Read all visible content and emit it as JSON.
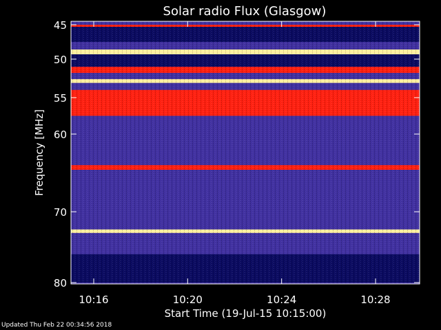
{
  "footer": {
    "updated": "Updated Thu Feb 22 00:34:56 2018"
  },
  "colors": {
    "background": "#000000",
    "axis": "#ffffff",
    "low": "#0a0a60",
    "mid": "#4030a0",
    "high": "#ff2010",
    "peak": "#fff0a0"
  },
  "chart_data": {
    "type": "heatmap",
    "title": "Solar radio Flux (Glasgow)",
    "xlabel": "Start Time (19-Jul-15 10:15:00)",
    "ylabel": "Frequency [MHz]",
    "x_range_minutes": [
      10.25,
      10.5
    ],
    "xlim": [
      "10:15:00",
      "10:30:00"
    ],
    "ylim": [
      80,
      45
    ],
    "x_ticks": [
      {
        "label": "10:16",
        "minute": 16
      },
      {
        "label": "10:20",
        "minute": 20
      },
      {
        "label": "10:24",
        "minute": 24
      },
      {
        "label": "10:28",
        "minute": 28
      }
    ],
    "y_ticks": [
      {
        "label": "45",
        "value": 45
      },
      {
        "label": "50",
        "value": 50
      },
      {
        "label": "55",
        "value": 55
      },
      {
        "label": "60",
        "value": 60
      },
      {
        "label": "70",
        "value": 70
      },
      {
        "label": "80",
        "value": 80
      }
    ],
    "bands": [
      {
        "freq_from": 45.0,
        "freq_to": 45.3,
        "level": "high"
      },
      {
        "freq_from": 45.3,
        "freq_to": 47.5,
        "level": "low"
      },
      {
        "freq_from": 47.5,
        "freq_to": 48.6,
        "level": "mid"
      },
      {
        "freq_from": 48.6,
        "freq_to": 49.3,
        "level": "peak"
      },
      {
        "freq_from": 49.3,
        "freq_to": 51.0,
        "level": "low"
      },
      {
        "freq_from": 51.0,
        "freq_to": 51.8,
        "level": "high"
      },
      {
        "freq_from": 51.8,
        "freq_to": 52.6,
        "level": "mid"
      },
      {
        "freq_from": 52.6,
        "freq_to": 53.1,
        "level": "peak"
      },
      {
        "freq_from": 53.1,
        "freq_to": 54.0,
        "level": "mid"
      },
      {
        "freq_from": 54.0,
        "freq_to": 57.5,
        "level": "high"
      },
      {
        "freq_from": 57.5,
        "freq_to": 64.0,
        "level": "mid"
      },
      {
        "freq_from": 64.0,
        "freq_to": 64.6,
        "level": "high"
      },
      {
        "freq_from": 64.6,
        "freq_to": 72.5,
        "level": "mid"
      },
      {
        "freq_from": 72.5,
        "freq_to": 73.0,
        "level": "peak"
      },
      {
        "freq_from": 73.0,
        "freq_to": 76.0,
        "level": "mid"
      },
      {
        "freq_from": 76.0,
        "freq_to": 80.0,
        "level": "low"
      }
    ]
  }
}
